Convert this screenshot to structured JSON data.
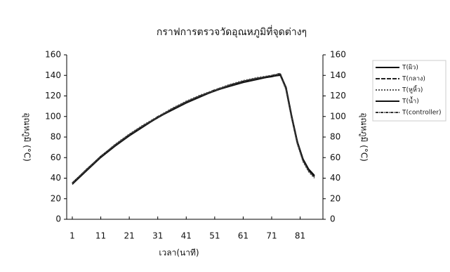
{
  "chart_data": {
    "type": "line",
    "title": "กราฟการตรวจวัดอุณหภูมิที่จุดต่างๆ",
    "x_label": "เวลา(นาที)",
    "y_label": "อุณหภูมิ (°C)",
    "y2_label": "อุณหภูมิ (°C)",
    "x": [
      1,
      6,
      11,
      16,
      21,
      26,
      31,
      36,
      41,
      46,
      51,
      56,
      61,
      66,
      71,
      74,
      76,
      78,
      80,
      82,
      84,
      86
    ],
    "xlim": [
      1,
      89
    ],
    "xticks": [
      1,
      11,
      21,
      31,
      41,
      51,
      61,
      71,
      81
    ],
    "ylim": [
      0,
      160
    ],
    "yticks": [
      0,
      20,
      40,
      60,
      80,
      100,
      120,
      140,
      160
    ],
    "y2lim": [
      0,
      160
    ],
    "y2ticks": [
      0,
      20,
      40,
      60,
      80,
      100,
      120,
      140,
      160
    ],
    "legend": "right",
    "series": [
      {
        "name": "T(ผิว)",
        "color": "#000000",
        "values": [
          35,
          48,
          61,
          72,
          82,
          91,
          99,
          107,
          114,
          120,
          125,
          130,
          134,
          137,
          139,
          141,
          128,
          100,
          75,
          58,
          48,
          42
        ]
      },
      {
        "name": "T(กลาง)",
        "color": "#222222",
        "values": [
          34,
          48,
          60,
          72,
          82,
          91,
          100,
          107,
          114,
          120,
          126,
          130,
          134,
          137,
          140,
          141,
          127,
          99,
          74,
          57,
          47,
          41
        ]
      },
      {
        "name": "T(หูหิ้ว)",
        "color": "#555555",
        "values": [
          35,
          49,
          61,
          73,
          83,
          92,
          100,
          108,
          115,
          121,
          126,
          131,
          135,
          138,
          140,
          140,
          126,
          98,
          73,
          56,
          46,
          40
        ]
      },
      {
        "name": "T(น้ำ)",
        "color": "#111111",
        "values": [
          34,
          47,
          60,
          71,
          81,
          90,
          99,
          106,
          113,
          119,
          125,
          129,
          133,
          136,
          139,
          140,
          129,
          101,
          76,
          59,
          49,
          43
        ]
      },
      {
        "name": "T(controller)",
        "color": "#333333",
        "values": [
          35,
          48,
          61,
          72,
          82,
          91,
          99,
          107,
          114,
          120,
          125,
          130,
          134,
          137,
          140,
          142,
          128,
          100,
          75,
          57,
          47,
          41
        ]
      }
    ]
  }
}
